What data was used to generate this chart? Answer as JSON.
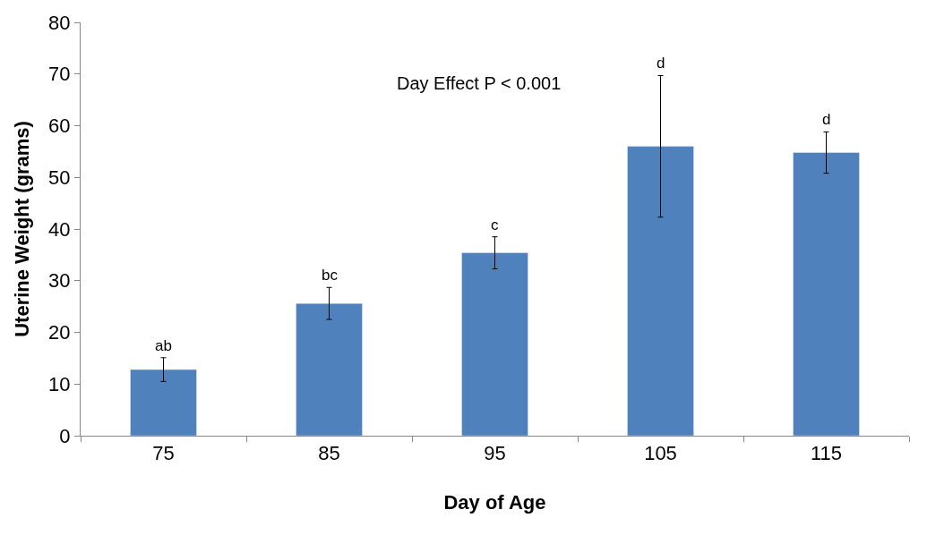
{
  "chart_data": {
    "type": "bar",
    "xlabel": "Day of Age",
    "ylabel": "Uterine Weight (grams)",
    "categories": [
      "75",
      "85",
      "95",
      "105",
      "115"
    ],
    "values": [
      12.8,
      25.6,
      35.4,
      56.0,
      54.8
    ],
    "errors": [
      2.3,
      3.1,
      3.1,
      13.7,
      4.0
    ],
    "color": "#4f81bd",
    "ylim": [
      0,
      80
    ],
    "yticks": [
      0,
      10,
      20,
      30,
      40,
      50,
      60,
      70,
      80
    ],
    "annotations": [
      {
        "text": "ab",
        "x": "75",
        "y": 15.1
      },
      {
        "text": "bc",
        "x": "85",
        "y": 28.7
      },
      {
        "text": "c",
        "x": "95",
        "y": 38.5
      },
      {
        "text": "d",
        "x": "105",
        "y": 69.7
      },
      {
        "text": "d",
        "x": "115",
        "y": 58.8
      },
      "Day Effect P < 0.001"
    ]
  }
}
